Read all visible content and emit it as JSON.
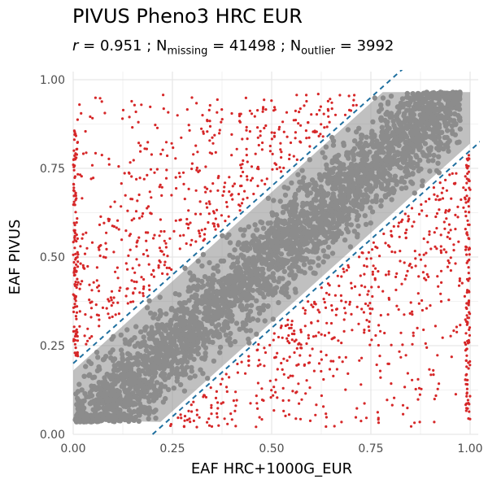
{
  "chart_data": {
    "type": "scatter",
    "title": "PIVUS Pheno3 HRC EUR",
    "subtitle": {
      "r_symbol": "r",
      "r_value": "0.951",
      "n_missing_label": "N",
      "n_missing_sub": "missing",
      "n_missing_value": "41498",
      "n_outlier_label": "N",
      "n_outlier_sub": "outlier",
      "n_outlier_value": "3992"
    },
    "xlabel": "EAF HRC+1000G_EUR",
    "ylabel": "EAF PIVUS",
    "xlim": [
      0,
      1
    ],
    "ylim": [
      0,
      1
    ],
    "x_ticks": [
      "0.00",
      "0.25",
      "0.50",
      "0.75",
      "1.00"
    ],
    "y_ticks": [
      "0.00",
      "0.25",
      "0.50",
      "0.75",
      "1.00"
    ],
    "grid": true,
    "series": [
      {
        "role": "non-outlier",
        "color": "#8c8c8c",
        "trend": "points between the two dashed lines (|y - x| < ~0.2)"
      },
      {
        "role": "outlier",
        "color": "#d62728",
        "count": 3992
      }
    ],
    "threshold_lines": [
      {
        "slope": 1,
        "intercept": 0.2
      },
      {
        "slope": 1,
        "intercept": -0.2
      }
    ],
    "threshold_color": "#1f6f9f"
  }
}
